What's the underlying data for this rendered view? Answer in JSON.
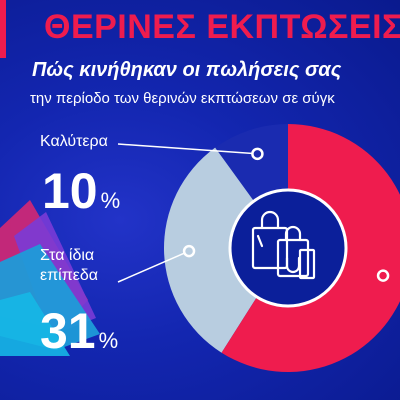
{
  "header": {
    "title": "ΘΕΡΙΝΕΣ ΕΚΠΤΩΣΕΙΣ",
    "subtitle": "Πώς κινήθηκαν οι πωλήσεις σας",
    "subtitle2": "την περίοδο των θερινών εκπτώσεων σε σύγκ"
  },
  "colors": {
    "background": "#1326b0",
    "accent_red": "#ef1c4e",
    "donut_light": "#b8cde0",
    "donut_dark": "#1a2bb0",
    "white": "#ffffff"
  },
  "icons": {
    "center": "shopping-bags-icon"
  },
  "chart_data": {
    "type": "pie",
    "style": "donut",
    "title": "Πώς κινήθηκαν οι πωλήσεις σας",
    "slices": [
      {
        "label": "Καλύτερα",
        "value": 10,
        "display": "10",
        "unit": "%",
        "color": "#1a2bb0"
      },
      {
        "label": "Στα ίδια επίπεδα",
        "value": 31,
        "display": "31",
        "unit": "%",
        "color": "#b8cde0"
      },
      {
        "label": "",
        "value": 59,
        "color": "#ef1c4e"
      }
    ]
  }
}
